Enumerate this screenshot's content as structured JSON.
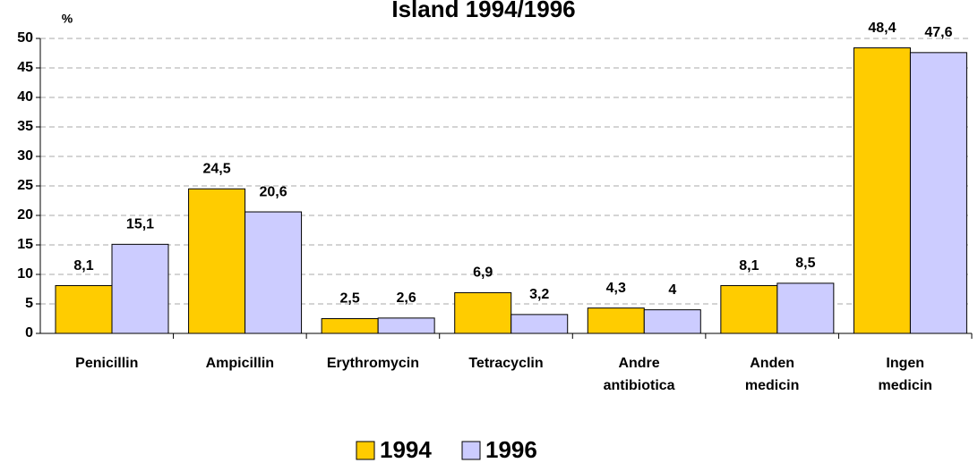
{
  "chart_data": {
    "type": "bar",
    "title": "Island 1994/1996",
    "y_label": "%",
    "categories": [
      "Penicillin",
      "Ampicillin",
      "Erythromycin",
      "Tetracyclin",
      "Andre antibiotica",
      "Anden medicin",
      "Ingen medicin"
    ],
    "series": [
      {
        "name": "1994",
        "color": "#ffcc00",
        "values": [
          8.1,
          24.5,
          2.5,
          6.9,
          4.3,
          8.1,
          48.4
        ],
        "value_labels": [
          "8,1",
          "24,5",
          "2,5",
          "6,9",
          "4,3",
          "8,1",
          "48,4"
        ]
      },
      {
        "name": "1996",
        "color": "#ccccff",
        "values": [
          15.1,
          20.6,
          2.6,
          3.2,
          4,
          8.5,
          47.6
        ],
        "value_labels": [
          "15,1",
          "20,6",
          "2,6",
          "3,2",
          "4",
          "8,5",
          "47,6"
        ]
      }
    ],
    "ylim": [
      0,
      50
    ],
    "yticks": [
      0,
      5,
      10,
      15,
      20,
      25,
      30,
      35,
      40,
      45,
      50
    ],
    "grid": true,
    "legend": "bottom"
  }
}
